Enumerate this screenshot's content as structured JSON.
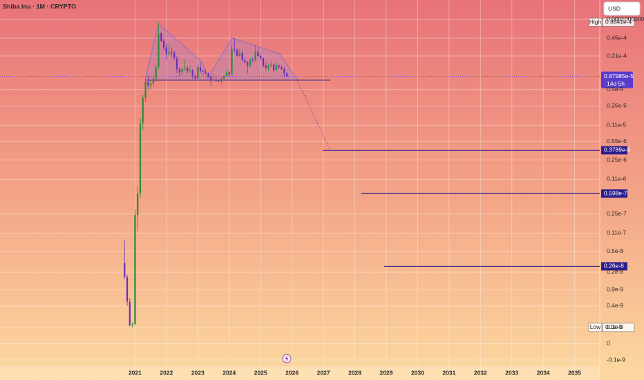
{
  "chart_data": {
    "type": "candlestick",
    "title": "Shiba Inu · 1M · CRYPTO",
    "currency": "USD",
    "log_scale": true,
    "grid": true,
    "up_color": "#2e8b3a",
    "down_color": "#6a2fb8",
    "xlim": [
      2016.7,
      2035.8
    ],
    "xticks": [
      2021,
      2022,
      2023,
      2024,
      2025,
      2026,
      2027,
      2028,
      2029,
      2030,
      2031,
      2032,
      2033,
      2034,
      2035
    ],
    "ylim": [
      -1e-10,
      0.0001
    ],
    "yticks": [
      {
        "value": 0.0001,
        "label": "0.0001000000"
      },
      {
        "value": 4.5e-05,
        "label": "0.45e-4"
      },
      {
        "value": 2.1e-05,
        "label": "0.21e-4"
      },
      {
        "value": 5e-06,
        "label": "0.5e-5"
      },
      {
        "value": 2.5e-06,
        "label": "0.25e-5"
      },
      {
        "value": 1.1e-06,
        "label": "0.11e-5"
      },
      {
        "value": 5.5e-07,
        "label": "0.55e-6"
      },
      {
        "value": 2.5e-07,
        "label": "0.25e-6"
      },
      {
        "value": 1.1e-07,
        "label": "0.11e-6"
      },
      {
        "value": 2.5e-08,
        "label": "0.25e-7"
      },
      {
        "value": 1.1e-08,
        "label": "0.11e-7"
      },
      {
        "value": 5e-09,
        "label": "0.5e-8"
      },
      {
        "value": 2e-09,
        "label": "0.2e-8"
      },
      {
        "value": 9e-10,
        "label": "0.9e-9"
      },
      {
        "value": 4e-10,
        "label": "0.4e-9"
      },
      {
        "value": 1e-10,
        "label": "0.1e-9"
      },
      0,
      {
        "value": -1e-10,
        "label": "-0.1e-9"
      }
    ],
    "x": [
      2020.667,
      2020.75,
      2020.833,
      2020.917,
      2021.0,
      2021.083,
      2021.167,
      2021.25,
      2021.333,
      2021.417,
      2021.5,
      2021.583,
      2021.667,
      2021.75,
      2021.833,
      2021.917,
      2022.0,
      2022.083,
      2022.167,
      2022.25,
      2022.333,
      2022.417,
      2022.5,
      2022.583,
      2022.667,
      2022.75,
      2022.833,
      2022.917,
      2023.0,
      2023.083,
      2023.167,
      2023.25,
      2023.333,
      2023.417,
      2023.5,
      2023.583,
      2023.667,
      2023.75,
      2023.833,
      2023.917,
      2024.0,
      2024.083,
      2024.167,
      2024.25,
      2024.333,
      2024.417,
      2024.5,
      2024.583,
      2024.667,
      2024.75,
      2024.833,
      2024.917,
      2025.0,
      2025.083,
      2025.167,
      2025.25,
      2025.333,
      2025.417,
      2025.5,
      2025.583,
      2025.667,
      2025.75,
      2025.833
    ],
    "open": [
      3e-09,
      1.6e-09,
      5e-10,
      1.2e-10,
      1.3e-10,
      2.4e-08,
      6e-08,
      1.2e-06,
      3.5e-06,
      7e-06,
      6e-06,
      6.5e-06,
      8e-06,
      1.3e-05,
      5.5e-05,
      4e-05,
      3e-05,
      2.3e-05,
      2.5e-05,
      2.4e-05,
      1.9e-05,
      1.2e-05,
      1.05e-05,
      1.2e-05,
      1.25e-05,
      1.1e-05,
      1.15e-05,
      9e-06,
      8e-06,
      1.3e-05,
      1.1e-05,
      1.07e-05,
      1e-05,
      8.7e-06,
      7.5e-06,
      7.6e-06,
      7.3e-06,
      7.1e-06,
      8e-06,
      9e-06,
      1.05e-05,
      9.6e-06,
      2.8e-05,
      2.7e-05,
      2.1e-05,
      2.4e-05,
      1.75e-05,
      1.6e-05,
      1.4e-05,
      1.8e-05,
      1.75e-05,
      2.5e-05,
      2.1e-05,
      1.9e-05,
      1.4e-05,
      1.25e-05,
      1.4e-05,
      1.45e-05,
      1.15e-05,
      1.4e-05,
      1.3e-05,
      1.2e-05,
      1e-05
    ],
    "high": [
      8e-09,
      1.8e-09,
      6e-10,
      1.5e-10,
      3e-08,
      8e-08,
      1.5e-06,
      4e-06,
      8e-06,
      9e-06,
      7.5e-06,
      9e-06,
      1.5e-05,
      8.841e-05,
      5.8e-05,
      4.4e-05,
      3.5e-05,
      3.6e-05,
      3e-05,
      2.6e-05,
      2.1e-05,
      1.3e-05,
      1.3e-05,
      1.8e-05,
      1.35e-05,
      1.4e-05,
      1.2e-05,
      9.5e-06,
      1.4e-05,
      1.6e-05,
      1.15e-05,
      1.2e-05,
      1.05e-05,
      9e-06,
      1e-05,
      9e-06,
      7.6e-06,
      8.5e-06,
      9.2e-06,
      1.2e-05,
      1.1e-05,
      3.5e-05,
      4.5e-05,
      2.9e-05,
      2.8e-05,
      2.6e-05,
      2e-05,
      1.7e-05,
      1.9e-05,
      2e-05,
      3.3e-05,
      3e-05,
      2.3e-05,
      1.95e-05,
      1.6e-05,
      1.5e-05,
      1.7e-05,
      1.5e-05,
      1.6e-05,
      1.45e-05,
      1.4e-05,
      1.3e-05,
      1.05e-05
    ],
    "low": [
      1.5e-09,
      4e-10,
      1.1e-10,
      1e-10,
      1.2e-10,
      1.2e-08,
      5e-08,
      9e-07,
      3e-06,
      5e-06,
      5e-06,
      6e-06,
      7e-06,
      1.2e-05,
      3.8e-05,
      2.6e-05,
      1.8e-05,
      2.1e-05,
      2e-05,
      1.8e-05,
      1e-05,
      9e-06,
      9.5e-06,
      1.1e-05,
      1e-05,
      1e-05,
      8e-06,
      7.8e-06,
      7.9e-06,
      1e-05,
      9.5e-06,
      9.7e-06,
      8.3e-06,
      5.9e-06,
      7e-06,
      7e-06,
      6.9e-06,
      6.5e-06,
      7.8e-06,
      8.7e-06,
      8.5e-06,
      9.4e-06,
      2.4e-05,
      2e-05,
      2e-05,
      1.7e-05,
      1.5e-05,
      1e-05,
      1.3e-05,
      1.6e-05,
      1.7e-05,
      2e-05,
      1.8e-05,
      1.3e-05,
      1.15e-05,
      1.1e-05,
      1.3e-05,
      1.05e-05,
      1.1e-05,
      1.2e-05,
      1.15e-05,
      8.5e-06,
      8.5e-06
    ],
    "close": [
      1.6e-09,
      5e-10,
      1.2e-10,
      1.3e-10,
      2.4e-08,
      6e-08,
      1.2e-06,
      3.5e-06,
      7e-06,
      6e-06,
      6.5e-06,
      8e-06,
      1.3e-05,
      5.5e-05,
      4e-05,
      3e-05,
      2.3e-05,
      2.5e-05,
      2.4e-05,
      1.9e-05,
      1.2e-05,
      1.05e-05,
      1.2e-05,
      1.25e-05,
      1.1e-05,
      1.15e-05,
      9e-06,
      8e-06,
      1.3e-05,
      1.1e-05,
      1.07e-05,
      1e-05,
      8.7e-06,
      7.5e-06,
      7.6e-06,
      7.3e-06,
      7.1e-06,
      8e-06,
      9e-06,
      1.05e-05,
      9.6e-06,
      2.8e-05,
      2.7e-05,
      2.1e-05,
      2.4e-05,
      1.75e-05,
      1.6e-05,
      1.4e-05,
      1.8e-05,
      1.75e-05,
      2.5e-05,
      2.1e-05,
      1.9e-05,
      1.4e-05,
      1.25e-05,
      1.4e-05,
      1.45e-05,
      1.15e-05,
      1.4e-05,
      1.3e-05,
      1.2e-05,
      1e-05,
      8.7985e-06
    ],
    "high_marker": {
      "tag": "High",
      "value": 8.841e-05,
      "label": "0.8841e-4"
    },
    "low_marker": {
      "tag": "Low",
      "value": 1e-10,
      "label": "0.1e-9"
    },
    "last_price": {
      "value": 8.7985e-06,
      "label": "0.87985e-5",
      "countdown": "14d 5h"
    },
    "targets": [
      {
        "value": 3.789e-07,
        "label": "0.3789e-6"
      },
      {
        "value": 5.98e-08,
        "label": "0.598e-7"
      },
      {
        "value": 2.6e-09,
        "label": "0.26e-8"
      }
    ]
  }
}
